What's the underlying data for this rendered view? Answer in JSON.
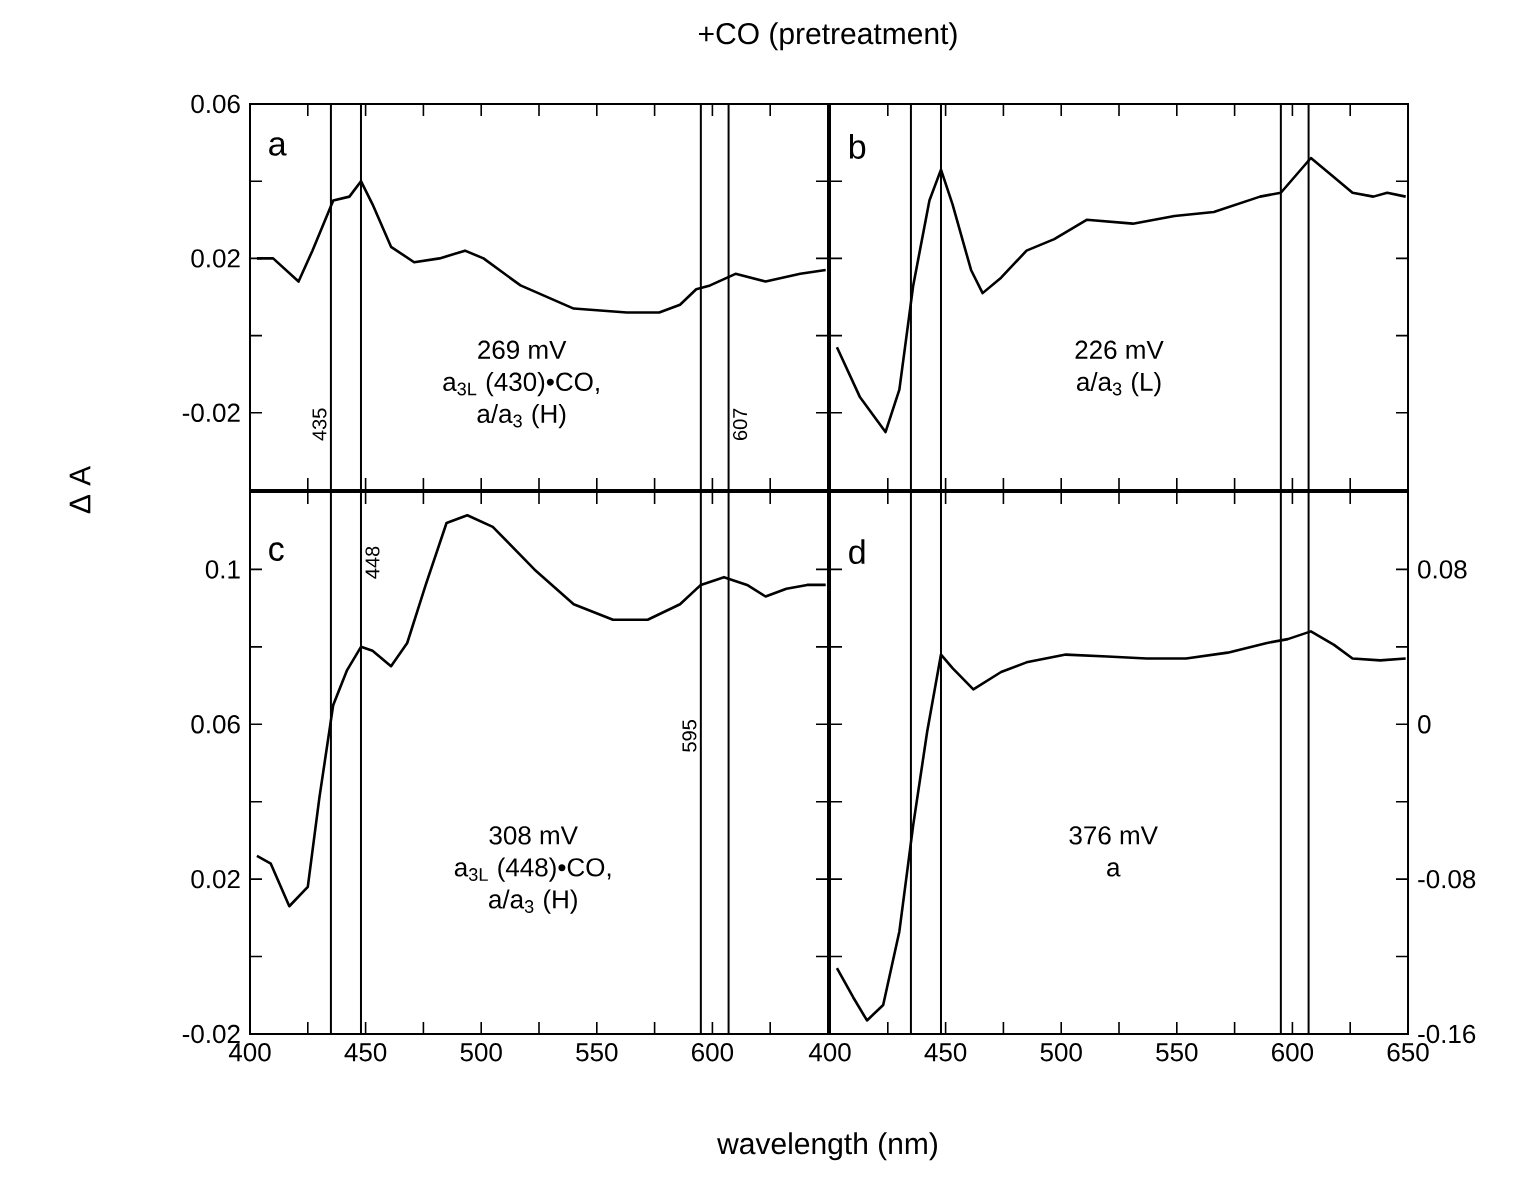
{
  "chart_data": [
    {
      "type": "line",
      "title": "+CO (pretreatment)",
      "ylabel": "Δ A",
      "annotations": [
        "a",
        "269 mV",
        "a$_{3L}$ (430)•CO,",
        "a/a$_{3}$ (H)"
      ],
      "x": [
        403,
        410,
        421,
        427,
        436,
        443,
        448,
        453,
        461,
        471,
        482,
        493,
        501,
        517,
        540,
        563,
        577,
        586,
        593,
        599,
        610,
        623,
        638,
        649
      ],
      "series": [
        {
          "color": "#000000",
          "values": [
            0.02,
            0.02,
            0.014,
            0.022,
            0.035,
            0.036,
            0.04,
            0.034,
            0.023,
            0.019,
            0.02,
            0.022,
            0.02,
            0.013,
            0.007,
            0.006,
            0.006,
            0.008,
            0.012,
            0.013,
            0.016,
            0.014,
            0.016,
            0.017
          ]
        }
      ],
      "xlim": [
        400,
        650
      ],
      "ylim": [
        -0.04,
        0.06
      ],
      "xticks": [
        400,
        {
          "value": 425,
          "label": null
        },
        450,
        {
          "value": 475,
          "label": null
        },
        500,
        {
          "value": 525,
          "label": null
        },
        550,
        {
          "value": 575,
          "label": null
        },
        600,
        {
          "value": 625,
          "label": null
        },
        650
      ],
      "yticks": [
        0.06,
        {
          "value": 0.04,
          "label": null
        },
        0.02,
        {
          "value": 0,
          "label": null
        },
        -0.02
      ],
      "tick_labels": "y",
      "ref_lines": [
        {
          "axis": "x",
          "value": 435,
          "label": "435"
        },
        {
          "axis": "x",
          "value": 448
        },
        {
          "axis": "x",
          "value": 595
        },
        {
          "axis": "x",
          "value": 607,
          "label": "607"
        }
      ]
    },
    {
      "type": "line",
      "annotations": [
        "b",
        "226 mV",
        "a/a$_{3}$ (L)"
      ],
      "x": [
        403,
        413,
        424,
        430,
        436,
        443,
        448,
        453,
        461,
        466,
        474,
        485,
        497,
        511,
        531,
        549,
        566,
        586,
        595,
        608,
        618,
        626,
        635,
        641,
        649
      ],
      "series": [
        {
          "color": "#000000",
          "values": [
            -0.003,
            -0.016,
            -0.025,
            -0.014,
            0.013,
            0.035,
            0.043,
            0.034,
            0.017,
            0.011,
            0.015,
            0.022,
            0.025,
            0.03,
            0.029,
            0.031,
            0.032,
            0.036,
            0.037,
            0.046,
            0.041,
            0.037,
            0.036,
            0.037,
            0.036
          ]
        }
      ],
      "xlim": [
        400,
        650
      ],
      "ylim": [
        -0.04,
        0.06
      ],
      "xticks": [
        400,
        {
          "value": 425,
          "label": null
        },
        450,
        {
          "value": 475,
          "label": null
        },
        500,
        {
          "value": 525,
          "label": null
        },
        550,
        {
          "value": 575,
          "label": null
        },
        600,
        {
          "value": 625,
          "label": null
        },
        650
      ],
      "yticks": [
        0.06,
        {
          "value": 0.04,
          "label": null
        },
        0.02,
        {
          "value": 0,
          "label": null
        },
        -0.02
      ],
      "tick_labels": false,
      "ref_lines": [
        {
          "axis": "x",
          "value": 435
        },
        {
          "axis": "x",
          "value": 448
        },
        {
          "axis": "x",
          "value": 595
        },
        {
          "axis": "x",
          "value": 607
        }
      ]
    },
    {
      "type": "line",
      "xlabel": "wavelength (nm)",
      "annotations": [
        "c",
        "308 mV",
        "a$_{3L}$ (448)•CO,",
        "a/a$_{3}$ (H)"
      ],
      "x": [
        403,
        409,
        417,
        425,
        430,
        436,
        442,
        448,
        453,
        461,
        468,
        476,
        485,
        494,
        505,
        523,
        540,
        557,
        572,
        586,
        595,
        605,
        615,
        623,
        632,
        641,
        649
      ],
      "series": [
        {
          "color": "#000000",
          "values": [
            0.026,
            0.024,
            0.013,
            0.018,
            0.041,
            0.065,
            0.074,
            0.08,
            0.079,
            0.075,
            0.081,
            0.096,
            0.112,
            0.114,
            0.111,
            0.1,
            0.091,
            0.087,
            0.087,
            0.091,
            0.096,
            0.098,
            0.096,
            0.093,
            0.095,
            0.096,
            0.096
          ]
        }
      ],
      "xlim": [
        400,
        650
      ],
      "ylim": [
        -0.02,
        0.12
      ],
      "xticks": [
        400,
        {
          "value": 425,
          "label": null
        },
        450,
        {
          "value": 475,
          "label": null
        },
        500,
        {
          "value": 525,
          "label": null
        },
        550,
        {
          "value": 575,
          "label": null
        },
        600,
        {
          "value": 625,
          "label": null
        },
        {
          "value": 650,
          "label": null
        }
      ],
      "yticks": [
        -0.02,
        {
          "value": 0,
          "label": null
        },
        0.02,
        {
          "value": 0.04,
          "label": null
        },
        0.06,
        {
          "value": 0.08,
          "label": null
        },
        0.1
      ],
      "ref_lines": [
        {
          "axis": "x",
          "value": 435
        },
        {
          "axis": "x",
          "value": 448,
          "label": "448"
        },
        {
          "axis": "x",
          "value": 595,
          "label": "595"
        },
        {
          "axis": "x",
          "value": 607
        }
      ]
    },
    {
      "type": "line",
      "annotations": [
        "d",
        "376 mV",
        "a"
      ],
      "x": [
        403,
        410,
        416,
        423,
        430,
        436,
        442,
        448,
        453,
        462,
        474,
        485,
        502,
        520,
        537,
        554,
        572,
        589,
        598,
        608,
        618,
        626,
        638,
        649
      ],
      "series": [
        {
          "color": "#000000",
          "values": [
            -0.126,
            -0.141,
            -0.153,
            -0.145,
            -0.107,
            -0.052,
            -0.004,
            0.036,
            0.029,
            0.018,
            0.027,
            0.032,
            0.036,
            0.035,
            0.034,
            0.034,
            0.037,
            0.042,
            0.044,
            0.048,
            0.041,
            0.034,
            0.033,
            0.034
          ]
        }
      ],
      "xlim": [
        400,
        650
      ],
      "ylim": [
        -0.16,
        0.12
      ],
      "xticks": [
        400,
        {
          "value": 425,
          "label": null
        },
        450,
        {
          "value": 475,
          "label": null
        },
        500,
        {
          "value": 525,
          "label": null
        },
        550,
        {
          "value": 575,
          "label": null
        },
        600,
        {
          "value": 625,
          "label": null
        },
        650
      ],
      "yticks": [
        -0.16,
        {
          "value": -0.12,
          "label": null
        },
        -0.08,
        {
          "value": -0.04,
          "label": null
        },
        0,
        {
          "value": 0.04,
          "label": null
        },
        0.08
      ],
      "ref_lines": [
        {
          "axis": "x",
          "value": 435
        },
        {
          "axis": "x",
          "value": 448
        },
        {
          "axis": "x",
          "value": 595
        },
        {
          "axis": "x",
          "value": 607
        }
      ]
    }
  ]
}
